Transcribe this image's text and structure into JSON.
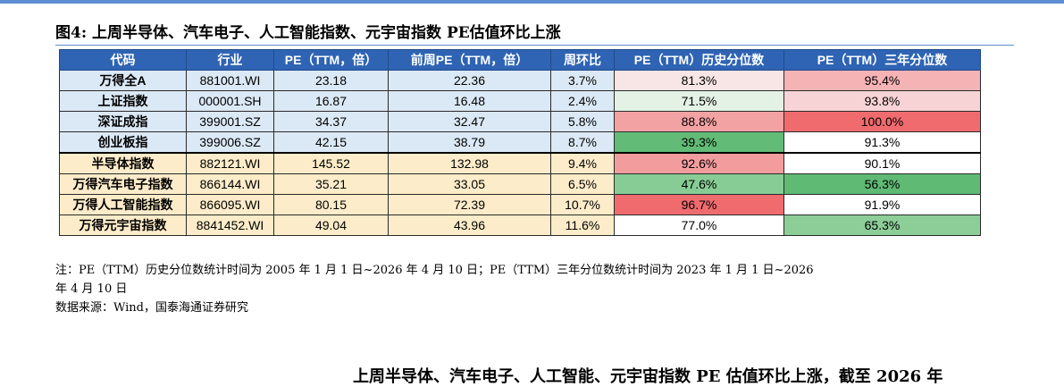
{
  "title": "图4:  上周半导体、汽车电子、人工智能指数、元宇宙指数 PE估值环比上涨",
  "table": {
    "headers": [
      "代码",
      "行业",
      "PE（TTM，倍）",
      "前周PE（TTM，倍）",
      "周环比",
      "PE（TTM）历史分位数",
      "PE（TTM）三年分位数"
    ],
    "rows": [
      {
        "name": "万得全A",
        "code": "881001.WI",
        "pe": "23.18",
        "prev_pe": "22.36",
        "wow": "3.7%",
        "hist_pct": "81.3%",
        "hist_color": "#f8e5e5",
        "three_pct": "95.4%",
        "three_color": "#f6b3b5"
      },
      {
        "name": "上证指数",
        "code": "000001.SH",
        "pe": "16.87",
        "prev_pe": "16.48",
        "wow": "2.4%",
        "hist_pct": "71.5%",
        "hist_color": "#e3f2e5",
        "three_pct": "93.8%",
        "three_color": "#f8d3d5"
      },
      {
        "name": "深证成指",
        "code": "399001.SZ",
        "pe": "34.37",
        "prev_pe": "32.47",
        "wow": "5.8%",
        "hist_pct": "88.8%",
        "hist_color": "#f3a2a4",
        "three_pct": "100.0%",
        "three_color": "#f06b6e"
      },
      {
        "name": "创业板指",
        "code": "399006.SZ",
        "pe": "42.15",
        "prev_pe": "38.79",
        "wow": "8.7%",
        "hist_pct": "39.3%",
        "hist_color": "#62bb76",
        "three_pct": "91.3%",
        "three_color": "#ffffff"
      },
      {
        "name": "半导体指数",
        "code": "882121.WI",
        "pe": "145.52",
        "prev_pe": "132.98",
        "wow": "9.4%",
        "hist_pct": "92.6%",
        "hist_color": "#f39c9e",
        "three_pct": "90.1%",
        "three_color": "#ffffff"
      },
      {
        "name": "万得汽车电子指数",
        "code": "866144.WI",
        "pe": "35.21",
        "prev_pe": "33.05",
        "wow": "6.5%",
        "hist_pct": "47.6%",
        "hist_color": "#88cc95",
        "three_pct": "56.3%",
        "three_color": "#5fba74"
      },
      {
        "name": "万得人工智能指数",
        "code": "866095.WI",
        "pe": "80.15",
        "prev_pe": "72.39",
        "wow": "10.7%",
        "hist_pct": "96.7%",
        "hist_color": "#f06b6e",
        "three_pct": "91.9%",
        "three_color": "#ffffff"
      },
      {
        "name": "万得元宇宙指数",
        "code": "8841452.WI",
        "pe": "49.04",
        "prev_pe": "43.96",
        "wow": "11.6%",
        "hist_pct": "77.0%",
        "hist_color": "#ffffff",
        "three_pct": "65.3%",
        "three_color": "#8dce98"
      }
    ]
  },
  "notes": {
    "line1": "注：PE（TTM）历史分位数统计时间为 2005 年 1 月 1 日~2026 年 4 月 10 日；PE（TTM）三年分位数统计时间为 2023 年 1 月 1 日~2026",
    "line2": "年 4 月 10 日",
    "line3": "数据来源：Wind，国泰海通证券研究"
  },
  "cut_text": "上周半导体、汽车电子、人工智能、元宇宙指数 PE 估值环比上涨，截至 2026 年"
}
